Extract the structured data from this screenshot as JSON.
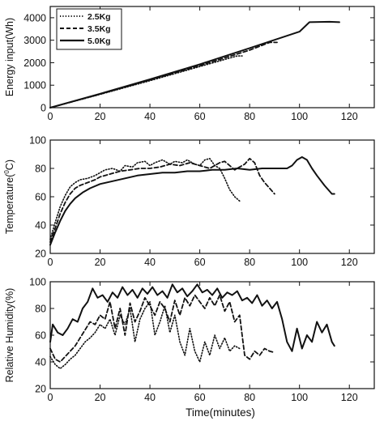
{
  "chart_data": [
    {
      "type": "line",
      "title": "",
      "xlabel": "",
      "ylabel": "Energy input(Wh)",
      "xlim": [
        0,
        130
      ],
      "ylim": [
        0,
        4500
      ],
      "xticks": [
        "0",
        "20",
        "40",
        "60",
        "80",
        "100",
        "120"
      ],
      "yticks": [
        "0",
        "1000",
        "2000",
        "3000",
        "4000"
      ],
      "legend": "top-left",
      "series": [
        {
          "name": "2.5Kg",
          "style": "dotted",
          "x": [
            0,
            20,
            40,
            60,
            75,
            77
          ],
          "y": [
            0,
            590,
            1200,
            1830,
            2300,
            2300
          ]
        },
        {
          "name": "3.5Kg",
          "style": "dashed",
          "x": [
            0,
            20,
            40,
            60,
            80,
            88,
            91
          ],
          "y": [
            0,
            600,
            1230,
            1870,
            2560,
            2900,
            2900
          ]
        },
        {
          "name": "5.0Kg",
          "style": "solid",
          "x": [
            0,
            20,
            40,
            60,
            80,
            100,
            104,
            112,
            116
          ],
          "y": [
            0,
            620,
            1260,
            1930,
            2650,
            3380,
            3800,
            3820,
            3800
          ]
        }
      ]
    },
    {
      "type": "line",
      "title": "",
      "xlabel": "",
      "ylabel": "Temperature(°C)",
      "ylabel_main": "Temperature(",
      "ylabel_sup": "0",
      "ylabel_end": "C)",
      "xlim": [
        0,
        130
      ],
      "ylim": [
        20,
        100
      ],
      "xticks": [
        "0",
        "20",
        "40",
        "60",
        "80",
        "100",
        "120"
      ],
      "yticks": [
        "20",
        "40",
        "60",
        "80",
        "100"
      ],
      "series": [
        {
          "name": "2.5Kg",
          "style": "dotted",
          "x": [
            0,
            2,
            4,
            6,
            8,
            10,
            12,
            15,
            18,
            20,
            22,
            25,
            28,
            30,
            33,
            35,
            38,
            40,
            42,
            45,
            48,
            50,
            53,
            55,
            58,
            60,
            62,
            64,
            66,
            68,
            70,
            72,
            74,
            76
          ],
          "y": [
            30,
            42,
            53,
            61,
            67,
            70,
            72,
            73,
            75,
            77,
            79,
            80,
            78,
            82,
            81,
            84,
            85,
            82,
            84,
            86,
            83,
            85,
            84,
            86,
            83,
            82,
            86,
            87,
            82,
            80,
            73,
            65,
            60,
            57
          ]
        },
        {
          "name": "3.5Kg",
          "style": "dashed",
          "x": [
            0,
            2,
            4,
            6,
            8,
            10,
            12,
            15,
            18,
            20,
            24,
            28,
            32,
            36,
            40,
            44,
            48,
            52,
            56,
            60,
            64,
            68,
            70,
            72,
            74,
            76,
            78,
            80,
            82,
            84,
            86,
            88,
            90
          ],
          "y": [
            28,
            38,
            48,
            56,
            62,
            66,
            68,
            70,
            72,
            74,
            76,
            78,
            79,
            80,
            80,
            81,
            83,
            82,
            84,
            82,
            80,
            84,
            85,
            82,
            79,
            81,
            83,
            87,
            84,
            75,
            70,
            66,
            62
          ]
        },
        {
          "name": "5.0Kg",
          "style": "solid",
          "x": [
            0,
            2,
            4,
            6,
            8,
            10,
            13,
            16,
            20,
            25,
            30,
            35,
            40,
            45,
            50,
            55,
            60,
            65,
            70,
            75,
            80,
            85,
            90,
            95,
            97,
            99,
            101,
            103,
            105,
            107,
            110,
            113,
            114
          ],
          "y": [
            26,
            35,
            43,
            50,
            55,
            59,
            63,
            66,
            69,
            71,
            73,
            75,
            76,
            77,
            77,
            78,
            78,
            79,
            79,
            80,
            79,
            80,
            80,
            80,
            82,
            86,
            88,
            86,
            80,
            75,
            68,
            62,
            62
          ]
        }
      ]
    },
    {
      "type": "line",
      "title": "",
      "xlabel": "Time(minutes)",
      "ylabel": "Relative Humidity(%)",
      "xlim": [
        0,
        130
      ],
      "ylim": [
        20,
        100
      ],
      "xticks": [
        "0",
        "20",
        "40",
        "60",
        "80",
        "100",
        "120"
      ],
      "yticks": [
        "20",
        "40",
        "60",
        "80",
        "100"
      ],
      "series": [
        {
          "name": "2.5Kg",
          "style": "dotted",
          "x": [
            0,
            2,
            4,
            6,
            8,
            10,
            12,
            14,
            16,
            18,
            20,
            22,
            24,
            26,
            28,
            30,
            32,
            34,
            36,
            38,
            40,
            42,
            44,
            46,
            48,
            50,
            52,
            54,
            56,
            58,
            60,
            62,
            64,
            66,
            68,
            70,
            72,
            74,
            76
          ],
          "y": [
            44,
            38,
            35,
            38,
            42,
            45,
            50,
            55,
            58,
            62,
            68,
            65,
            72,
            60,
            75,
            68,
            80,
            55,
            72,
            80,
            85,
            60,
            70,
            82,
            62,
            75,
            55,
            45,
            65,
            48,
            40,
            55,
            45,
            60,
            50,
            58,
            48,
            52,
            50
          ]
        },
        {
          "name": "3.5Kg",
          "style": "dashed",
          "x": [
            0,
            2,
            4,
            6,
            8,
            10,
            12,
            14,
            16,
            18,
            20,
            22,
            24,
            26,
            28,
            30,
            32,
            34,
            36,
            38,
            40,
            42,
            44,
            46,
            48,
            50,
            52,
            54,
            56,
            58,
            60,
            62,
            64,
            66,
            68,
            70,
            72,
            74,
            76,
            78,
            80,
            82,
            84,
            86,
            88,
            90
          ],
          "y": [
            50,
            42,
            40,
            44,
            48,
            52,
            58,
            64,
            70,
            68,
            75,
            72,
            85,
            65,
            80,
            60,
            84,
            70,
            78,
            88,
            82,
            75,
            85,
            80,
            70,
            86,
            75,
            88,
            82,
            90,
            85,
            80,
            88,
            82,
            90,
            78,
            85,
            70,
            75,
            45,
            42,
            48,
            45,
            50,
            48,
            47
          ]
        },
        {
          "name": "5.0Kg",
          "style": "solid",
          "x": [
            0,
            1,
            3,
            5,
            7,
            9,
            11,
            13,
            15,
            17,
            19,
            21,
            23,
            25,
            27,
            29,
            31,
            33,
            35,
            37,
            39,
            41,
            43,
            45,
            47,
            49,
            51,
            53,
            55,
            57,
            59,
            61,
            63,
            65,
            67,
            69,
            71,
            73,
            75,
            77,
            79,
            81,
            83,
            85,
            87,
            89,
            91,
            93,
            95,
            97,
            99,
            101,
            103,
            105,
            107,
            109,
            111,
            113,
            114
          ],
          "y": [
            55,
            68,
            62,
            60,
            65,
            72,
            70,
            80,
            85,
            95,
            88,
            90,
            85,
            92,
            88,
            96,
            90,
            94,
            88,
            95,
            91,
            96,
            90,
            93,
            88,
            98,
            92,
            95,
            89,
            93,
            98,
            92,
            94,
            90,
            95,
            88,
            92,
            90,
            93,
            86,
            88,
            84,
            90,
            82,
            86,
            80,
            85,
            72,
            55,
            48,
            65,
            50,
            60,
            55,
            70,
            62,
            68,
            55,
            52
          ]
        }
      ]
    }
  ]
}
